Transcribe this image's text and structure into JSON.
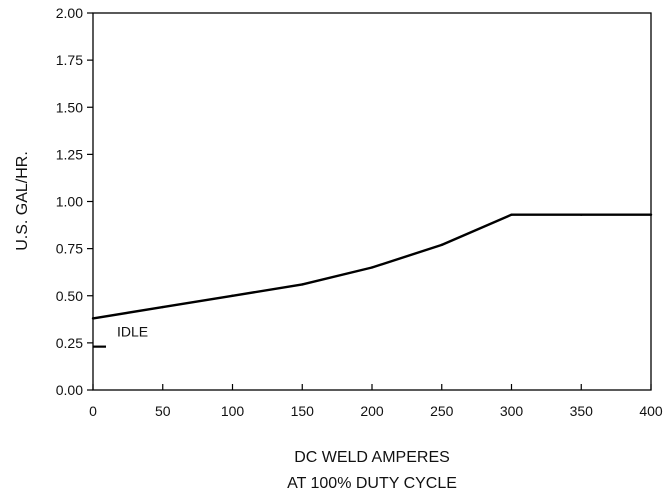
{
  "chart_data": {
    "type": "line",
    "title": "",
    "xlabel": [
      "DC WELD AMPERES",
      "AT 100% DUTY CYCLE"
    ],
    "ylabel": "U.S. GAL/HR.",
    "xlim": [
      0,
      400
    ],
    "ylim": [
      0,
      2.0
    ],
    "x_ticks": [
      "0",
      "50",
      "100",
      "150",
      "200",
      "250",
      "300",
      "350",
      "400"
    ],
    "y_ticks": [
      "0.00",
      "0.25",
      "0.50",
      "0.75",
      "1.00",
      "1.25",
      "1.50",
      "1.75",
      "2.00"
    ],
    "grid": false,
    "series": [
      {
        "x": [
          0,
          50,
          100,
          150,
          200,
          250,
          300,
          350,
          400
        ],
        "y": [
          0.38,
          0.44,
          0.5,
          0.56,
          0.65,
          0.77,
          0.93,
          0.93,
          0.93
        ]
      }
    ],
    "annotations": [
      {
        "label": "IDLE",
        "x": 0,
        "y": 0.23
      }
    ],
    "colors": {
      "line": "#000000",
      "axis": "#000000",
      "text": "#111111"
    }
  }
}
